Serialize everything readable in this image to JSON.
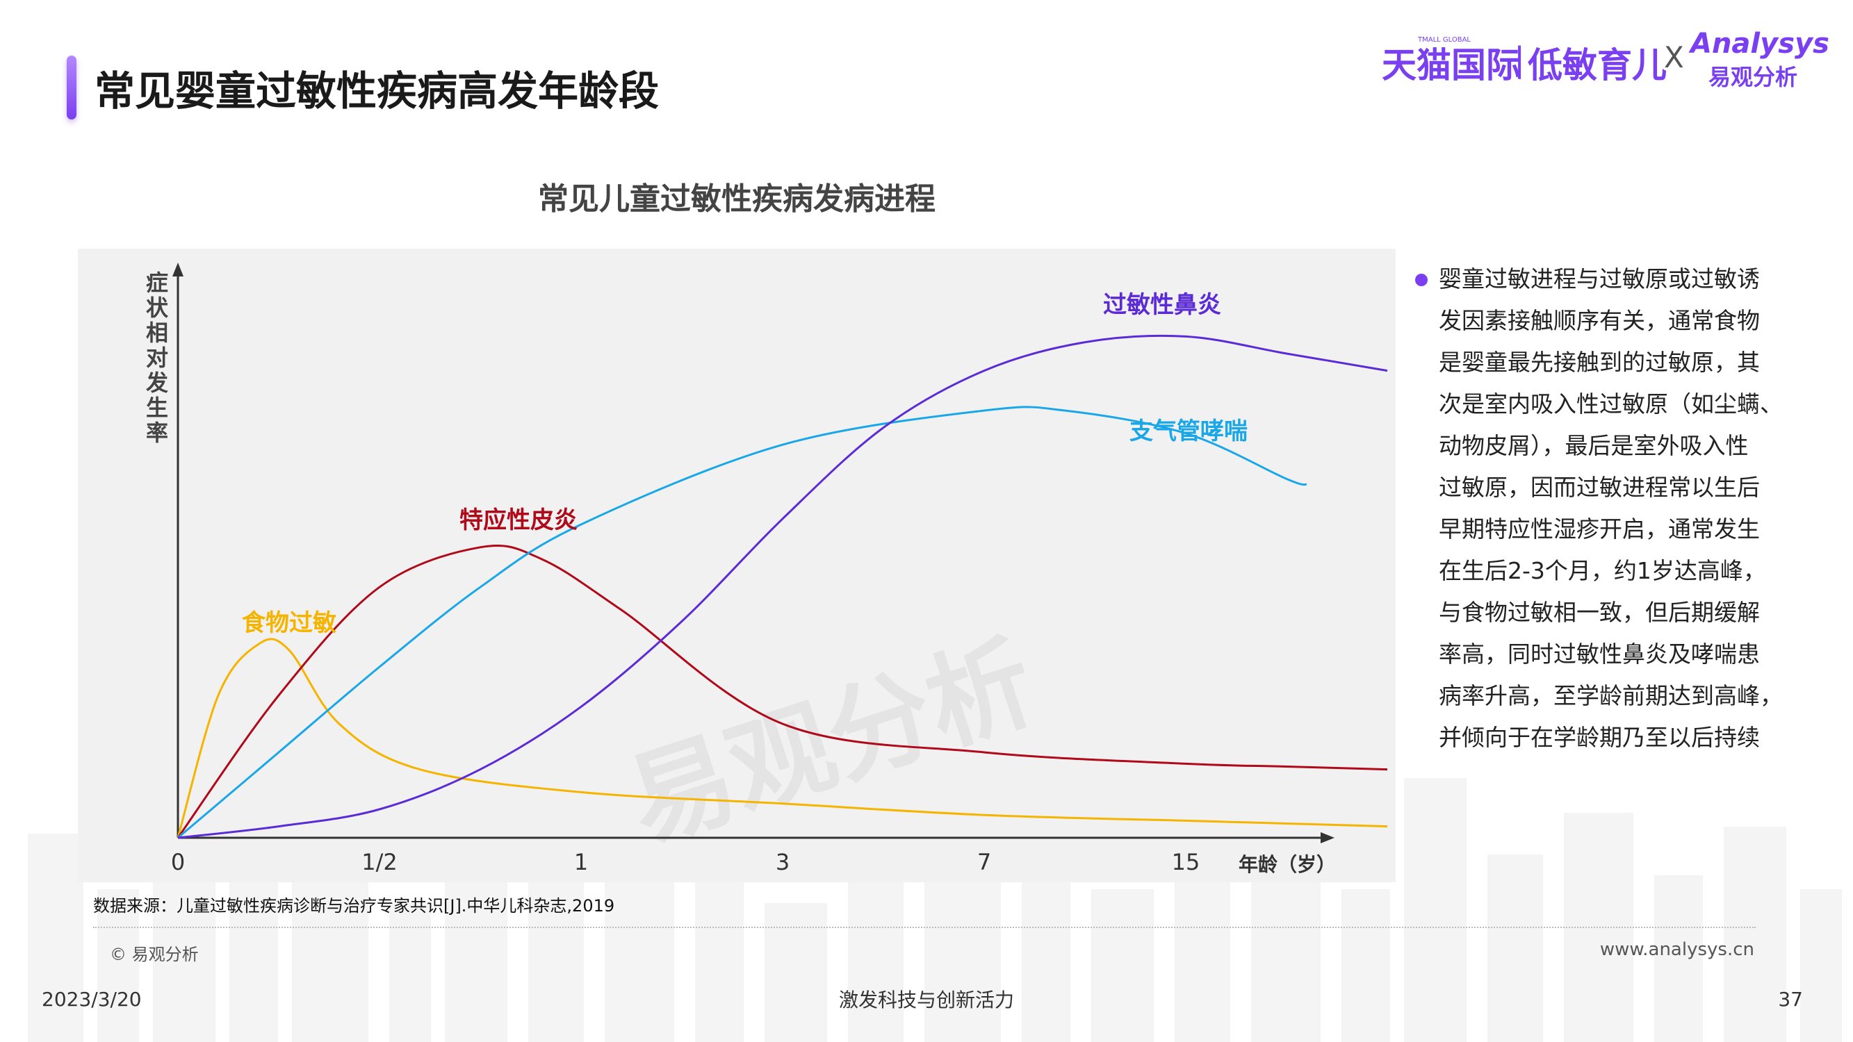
{
  "page": {
    "title": "常见婴童过敏性疾病高发年龄段",
    "logos": {
      "tmall": "天猫国际",
      "tmall_sub": "TMALL GLOBAL",
      "separator": "|",
      "low_allergy": "低敏育儿",
      "x": "X",
      "analysys": "Analysys",
      "analysys_cn": "易观分析"
    },
    "accent_color": "#7a3ff0"
  },
  "chart_data": {
    "type": "line",
    "title": "常见儿童过敏性疾病发病进程",
    "ylabel": "症状相对发生率",
    "xlabel": "年龄（岁）",
    "x_ticks": [
      "0",
      "1/2",
      "1",
      "3",
      "7",
      "15"
    ],
    "y_ticks": [],
    "ylim": [
      0,
      100
    ],
    "grid": false,
    "watermark": "易观分析",
    "series": [
      {
        "name": "食物过敏",
        "color": "#f5b400",
        "x": [
          0,
          0.2,
          0.4,
          0.55,
          0.8,
          1.2,
          2,
          3,
          4,
          5,
          5.5,
          6
        ],
        "y": [
          0,
          25,
          34,
          33,
          20,
          12,
          8,
          6,
          4,
          3,
          2.5,
          2
        ]
      },
      {
        "name": "特应性皮炎",
        "color": "#b00a1a",
        "x": [
          0,
          0.5,
          1,
          1.5,
          1.8,
          2.2,
          3,
          4,
          5,
          5.5,
          6
        ],
        "y": [
          0,
          25,
          44,
          51,
          49,
          40,
          20,
          15,
          13,
          12.5,
          12
        ]
      },
      {
        "name": "支气管哮喘",
        "color": "#1aa7e8",
        "x": [
          0,
          0.5,
          1,
          1.5,
          2,
          3,
          4,
          4.4,
          5,
          5.5,
          5.6
        ],
        "y": [
          0,
          15,
          30,
          44,
          55,
          69,
          75,
          75,
          71,
          63,
          62
        ]
      },
      {
        "name": "过敏性鼻炎",
        "color": "#5b2bd6",
        "x": [
          0,
          0.5,
          1,
          1.5,
          2,
          2.5,
          3,
          3.5,
          4,
          4.5,
          5,
          5.5,
          6
        ],
        "y": [
          0,
          2,
          5,
          12,
          23,
          38,
          56,
          72,
          82,
          87,
          88,
          85,
          82
        ]
      }
    ],
    "annotations": [
      "食物过敏",
      "特应性皮炎",
      "支气管哮喘",
      "过敏性鼻炎"
    ]
  },
  "sidebar": {
    "lines": [
      "婴童过敏进程与过敏原或过敏诱",
      "发因素接触顺序有关，通常食物",
      "是婴童最先接触到的过敏原，其",
      "次是室内吸入性过敏原（如尘螨、",
      "动物皮屑），最后是室外吸入性",
      "过敏原，因而过敏进程常以生后",
      "早期特应性湿疹开启，通常发生",
      "在生后2-3个月，约1岁达高峰，",
      "与食物过敏相一致，但后期缓解",
      "率高，同时过敏性鼻炎及哮喘患",
      "病率升高，至学龄前期达到高峰，",
      "并倾向于在学龄期乃至以后持续"
    ]
  },
  "footer": {
    "source": "数据来源：儿童过敏性疾病诊断与治疗专家共识[J].中华儿科杂志,2019",
    "copyright": "© 易观分析",
    "website": "www.analysys.cn",
    "date": "2023/3/20",
    "slogan": "激发科技与创新活力",
    "page_number": "37"
  }
}
